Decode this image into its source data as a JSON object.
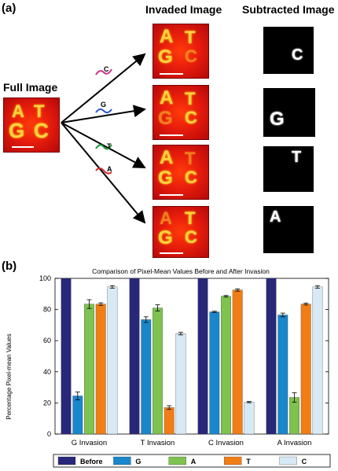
{
  "panel_a": {
    "label": "(a)",
    "full_image_title": "Full Image",
    "invaded_title": "Invaded Image",
    "subtracted_title": "Subtracted Image",
    "strands": [
      {
        "letter": "C",
        "color": "#d1348a"
      },
      {
        "letter": "G",
        "color": "#2f5bd6"
      },
      {
        "letter": "T",
        "color": "#1f9a3a"
      },
      {
        "letter": "A",
        "color": "#d62b2b"
      }
    ],
    "image_letters": {
      "a": "A",
      "c_letter": "C",
      "g": "G",
      "t": "T"
    }
  },
  "panel_b": {
    "label": "(b)"
  },
  "chart_data": {
    "type": "bar",
    "title": "Comparison of Pixel-Mean Values Before and After Invasion",
    "ylabel": "Percentage Pixel-mean Values",
    "xlabel": "",
    "ylim": [
      0,
      100
    ],
    "yticks": [
      "0",
      "20",
      "40",
      "60",
      "80",
      "100"
    ],
    "categories": [
      "G Invasion",
      "T Invasion",
      "C Invasion",
      "A Invasion"
    ],
    "legend_position": "bottom",
    "grid": false,
    "series": [
      {
        "name": "Before",
        "color": "#27287a",
        "values": [
          100,
          100,
          100,
          100
        ],
        "errors": [
          0,
          0,
          0,
          0
        ]
      },
      {
        "name": "G",
        "color": "#1a86cc",
        "values": [
          24.5,
          73.5,
          78.5,
          76.5
        ],
        "errors": [
          2.5,
          1.8,
          0.4,
          1.2
        ]
      },
      {
        "name": "A",
        "color": "#7ec24f",
        "values": [
          83.5,
          81.0,
          88.5,
          23.5
        ],
        "errors": [
          2.8,
          2.0,
          0.5,
          3.0
        ]
      },
      {
        "name": "T",
        "color": "#f07d16",
        "values": [
          83.5,
          17.0,
          92.5,
          83.5
        ],
        "errors": [
          0.8,
          1.2,
          0.7,
          0.6
        ]
      },
      {
        "name": "C",
        "color": "#d6e9f5",
        "values": [
          94.5,
          64.5,
          20.5,
          94.5
        ],
        "errors": [
          0.8,
          0.8,
          0.4,
          0.8
        ]
      }
    ]
  }
}
